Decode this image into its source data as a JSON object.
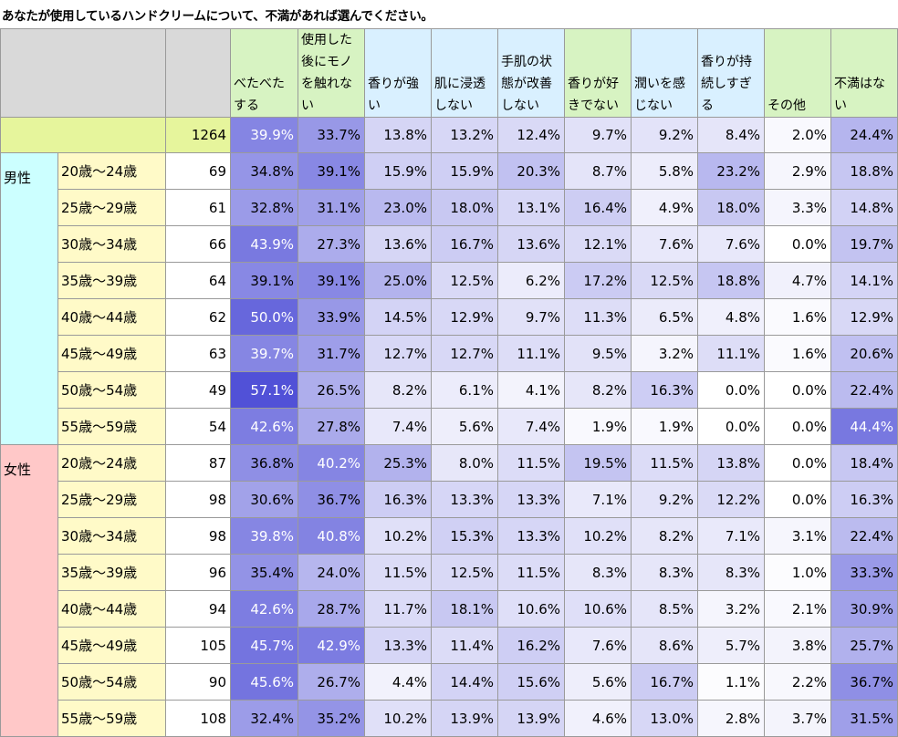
{
  "title": "あなたが使用しているハンドクリームについて、不満があれば選んでください。",
  "chart_data": {
    "type": "table",
    "columns": [
      "べたべたする",
      "使用した後にモノを触れない",
      "香りが強い",
      "肌に浸透しない",
      "手肌の状態が改善しない",
      "香りが好きでない",
      "潤いを感じない",
      "香りが持続しすぎる",
      "その他",
      "不満はない"
    ],
    "total": {
      "n": 1264,
      "values": [
        "39.9%",
        "33.7%",
        "13.8%",
        "13.2%",
        "12.4%",
        "9.7%",
        "9.2%",
        "8.4%",
        "2.0%",
        "24.4%"
      ]
    },
    "groups": [
      {
        "label": "男性",
        "rows": [
          {
            "age": "20歳～24歳",
            "n": 69,
            "values": [
              "34.8%",
              "39.1%",
              "15.9%",
              "15.9%",
              "20.3%",
              "8.7%",
              "5.8%",
              "23.2%",
              "2.9%",
              "18.8%"
            ]
          },
          {
            "age": "25歳～29歳",
            "n": 61,
            "values": [
              "32.8%",
              "31.1%",
              "23.0%",
              "18.0%",
              "13.1%",
              "16.4%",
              "4.9%",
              "18.0%",
              "3.3%",
              "14.8%"
            ]
          },
          {
            "age": "30歳～34歳",
            "n": 66,
            "values": [
              "43.9%",
              "27.3%",
              "13.6%",
              "16.7%",
              "13.6%",
              "12.1%",
              "7.6%",
              "7.6%",
              "0.0%",
              "19.7%"
            ]
          },
          {
            "age": "35歳～39歳",
            "n": 64,
            "values": [
              "39.1%",
              "39.1%",
              "25.0%",
              "12.5%",
              "6.2%",
              "17.2%",
              "12.5%",
              "18.8%",
              "4.7%",
              "14.1%"
            ]
          },
          {
            "age": "40歳～44歳",
            "n": 62,
            "values": [
              "50.0%",
              "33.9%",
              "14.5%",
              "12.9%",
              "9.7%",
              "11.3%",
              "6.5%",
              "4.8%",
              "1.6%",
              "12.9%"
            ]
          },
          {
            "age": "45歳～49歳",
            "n": 63,
            "values": [
              "39.7%",
              "31.7%",
              "12.7%",
              "12.7%",
              "11.1%",
              "9.5%",
              "3.2%",
              "11.1%",
              "1.6%",
              "20.6%"
            ]
          },
          {
            "age": "50歳～54歳",
            "n": 49,
            "values": [
              "57.1%",
              "26.5%",
              "8.2%",
              "6.1%",
              "4.1%",
              "8.2%",
              "16.3%",
              "0.0%",
              "0.0%",
              "22.4%"
            ]
          },
          {
            "age": "55歳～59歳",
            "n": 54,
            "values": [
              "42.6%",
              "27.8%",
              "7.4%",
              "5.6%",
              "7.4%",
              "1.9%",
              "1.9%",
              "0.0%",
              "0.0%",
              "44.4%"
            ]
          }
        ]
      },
      {
        "label": "女性",
        "rows": [
          {
            "age": "20歳～24歳",
            "n": 87,
            "values": [
              "36.8%",
              "40.2%",
              "25.3%",
              "8.0%",
              "11.5%",
              "19.5%",
              "11.5%",
              "13.8%",
              "0.0%",
              "18.4%"
            ]
          },
          {
            "age": "25歳～29歳",
            "n": 98,
            "values": [
              "30.6%",
              "36.7%",
              "16.3%",
              "13.3%",
              "13.3%",
              "7.1%",
              "9.2%",
              "12.2%",
              "0.0%",
              "16.3%"
            ]
          },
          {
            "age": "30歳～34歳",
            "n": 98,
            "values": [
              "39.8%",
              "40.8%",
              "10.2%",
              "15.3%",
              "13.3%",
              "10.2%",
              "8.2%",
              "7.1%",
              "3.1%",
              "22.4%"
            ]
          },
          {
            "age": "35歳～39歳",
            "n": 96,
            "values": [
              "35.4%",
              "24.0%",
              "11.5%",
              "12.5%",
              "11.5%",
              "8.3%",
              "8.3%",
              "8.3%",
              "1.0%",
              "33.3%"
            ]
          },
          {
            "age": "40歳～44歳",
            "n": 94,
            "values": [
              "42.6%",
              "28.7%",
              "11.7%",
              "18.1%",
              "10.6%",
              "10.6%",
              "8.5%",
              "3.2%",
              "2.1%",
              "30.9%"
            ]
          },
          {
            "age": "45歳～49歳",
            "n": 105,
            "values": [
              "45.7%",
              "42.9%",
              "13.3%",
              "11.4%",
              "16.2%",
              "7.6%",
              "8.6%",
              "5.7%",
              "3.8%",
              "25.7%"
            ]
          },
          {
            "age": "50歳～54歳",
            "n": 90,
            "values": [
              "45.6%",
              "26.7%",
              "4.4%",
              "14.4%",
              "15.6%",
              "5.6%",
              "16.7%",
              "1.1%",
              "2.2%",
              "36.7%"
            ]
          },
          {
            "age": "55歳～59歳",
            "n": 108,
            "values": [
              "32.4%",
              "35.2%",
              "10.2%",
              "13.9%",
              "13.9%",
              "4.6%",
              "13.0%",
              "2.8%",
              "3.7%",
              "31.5%"
            ]
          }
        ]
      }
    ]
  },
  "colors": {
    "header_lime": "#d7f3c2",
    "header_blue": "#d9f0ff",
    "total_row": "#e6f59c",
    "age_column": "#fffac8",
    "male_side": "#ccffff",
    "female_side": "#ffc8c8",
    "blank_header": "#d9d9d9",
    "heat_low": "#ffffff",
    "heat_high": "#3c3cd2"
  }
}
